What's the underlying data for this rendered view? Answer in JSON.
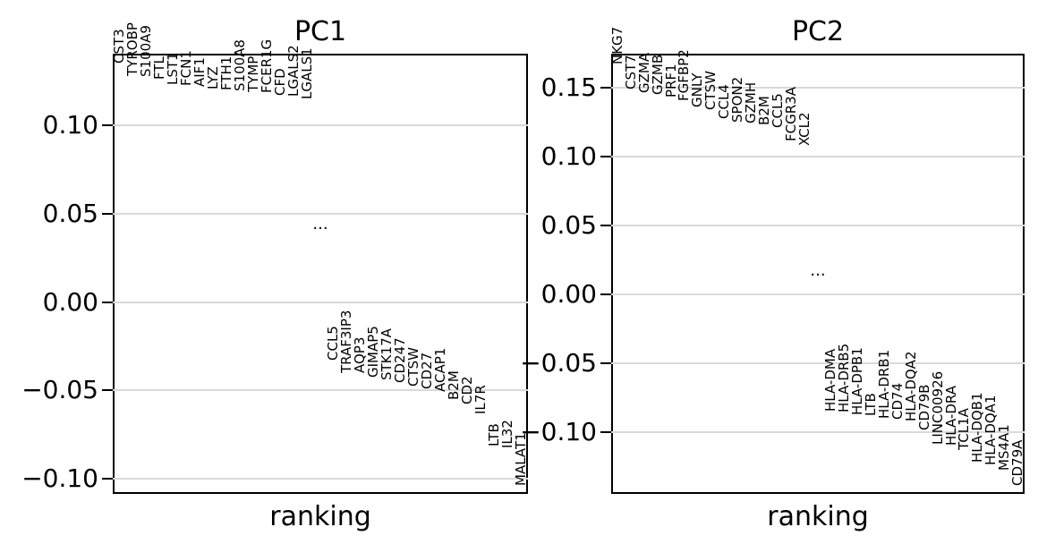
{
  "figure": {
    "background_color": "#ffffff",
    "grid_color": "#d9d9d9",
    "spine_color": "#000000",
    "text_color": "#000000"
  },
  "chart_data": [
    {
      "type": "scatter",
      "variant": "pca-loadings-ranking",
      "title": "PC1",
      "xlabel": "ranking",
      "grid": true,
      "ylim": [
        -0.1086,
        0.1405
      ],
      "yticks": [
        {
          "label": "0.10",
          "value": 0.1
        },
        {
          "label": "0.05",
          "value": 0.05
        },
        {
          "label": "0.00",
          "value": 0.0
        },
        {
          "label": "−0.05",
          "value": -0.05
        },
        {
          "label": "−0.10",
          "value": -0.1
        }
      ],
      "ellipsis": {
        "label": "...",
        "value": 0.039
      },
      "top_genes": [
        {
          "name": "CST3",
          "value": 0.135
        },
        {
          "name": "TYROBP",
          "value": 0.128
        },
        {
          "name": "S100A9",
          "value": 0.1275
        },
        {
          "name": "FTL",
          "value": 0.126
        },
        {
          "name": "LST1",
          "value": 0.123
        },
        {
          "name": "FCN1",
          "value": 0.1225
        },
        {
          "name": "AIF1",
          "value": 0.122
        },
        {
          "name": "LYZ",
          "value": 0.12
        },
        {
          "name": "FTH1",
          "value": 0.1195
        },
        {
          "name": "S100A8",
          "value": 0.119
        },
        {
          "name": "TYMP",
          "value": 0.1185
        },
        {
          "name": "FCER1G",
          "value": 0.118
        },
        {
          "name": "CFD",
          "value": 0.1165
        },
        {
          "name": "LGALS2",
          "value": 0.116
        },
        {
          "name": "LGALS1",
          "value": 0.1145
        }
      ],
      "bottom_genes": [
        {
          "name": "CCL5",
          "value": -0.033
        },
        {
          "name": "TRAF3IP3",
          "value": -0.04
        },
        {
          "name": "AQP3",
          "value": -0.0405
        },
        {
          "name": "GIMAP5",
          "value": -0.043
        },
        {
          "name": "STK17A",
          "value": -0.0445
        },
        {
          "name": "CD247",
          "value": -0.046
        },
        {
          "name": "CTSW",
          "value": -0.048
        },
        {
          "name": "CD27",
          "value": -0.0495
        },
        {
          "name": "ACAP1",
          "value": -0.051
        },
        {
          "name": "B2M",
          "value": -0.0555
        },
        {
          "name": "CD2",
          "value": -0.058
        },
        {
          "name": "IL7R",
          "value": -0.0635
        },
        {
          "name": "LTB",
          "value": -0.082
        },
        {
          "name": "IL32",
          "value": -0.083
        },
        {
          "name": "MALAT1",
          "value": -0.104
        }
      ]
    },
    {
      "type": "scatter",
      "variant": "pca-loadings-ranking",
      "title": "PC2",
      "xlabel": "ranking",
      "grid": true,
      "ylim": [
        -0.1448,
        0.1747
      ],
      "yticks": [
        {
          "label": "0.15",
          "value": 0.15
        },
        {
          "label": "0.10",
          "value": 0.1
        },
        {
          "label": "0.05",
          "value": 0.05
        },
        {
          "label": "0.00",
          "value": 0.0
        },
        {
          "label": "−0.05",
          "value": -0.05
        },
        {
          "label": "−0.10",
          "value": -0.1
        }
      ],
      "ellipsis": {
        "label": "...",
        "value": 0.011
      },
      "top_genes": [
        {
          "name": "NKG7",
          "value": 0.167
        },
        {
          "name": "CST7",
          "value": 0.149
        },
        {
          "name": "GZMA",
          "value": 0.146
        },
        {
          "name": "GZMB",
          "value": 0.145
        },
        {
          "name": "PRF1",
          "value": 0.143
        },
        {
          "name": "FGFBP2",
          "value": 0.14
        },
        {
          "name": "GNLY",
          "value": 0.136
        },
        {
          "name": "CTSW",
          "value": 0.134
        },
        {
          "name": "CCL4",
          "value": 0.127
        },
        {
          "name": "SPON2",
          "value": 0.125
        },
        {
          "name": "GZMH",
          "value": 0.124
        },
        {
          "name": "B2M",
          "value": 0.123
        },
        {
          "name": "CCL5",
          "value": 0.121
        },
        {
          "name": "FCGR3A",
          "value": 0.111
        },
        {
          "name": "XCL2",
          "value": 0.108
        }
      ],
      "bottom_genes": [
        {
          "name": "HLA-DMA",
          "value": -0.085
        },
        {
          "name": "HLA-DRB5",
          "value": -0.086
        },
        {
          "name": "HLA-DPB1",
          "value": -0.0875
        },
        {
          "name": "LTB",
          "value": -0.088
        },
        {
          "name": "HLA-DRB1",
          "value": -0.09
        },
        {
          "name": "CD74",
          "value": -0.091
        },
        {
          "name": "HLA-DQA2",
          "value": -0.0925
        },
        {
          "name": "CD79B",
          "value": -0.099
        },
        {
          "name": "LINC00926",
          "value": -0.109
        },
        {
          "name": "HLA-DRA",
          "value": -0.11
        },
        {
          "name": "TCL1A",
          "value": -0.113
        },
        {
          "name": "HLA-DQB1",
          "value": -0.122
        },
        {
          "name": "HLA-DQA1",
          "value": -0.124
        },
        {
          "name": "MS4A1",
          "value": -0.128
        },
        {
          "name": "CD79A",
          "value": -0.139
        }
      ]
    }
  ]
}
